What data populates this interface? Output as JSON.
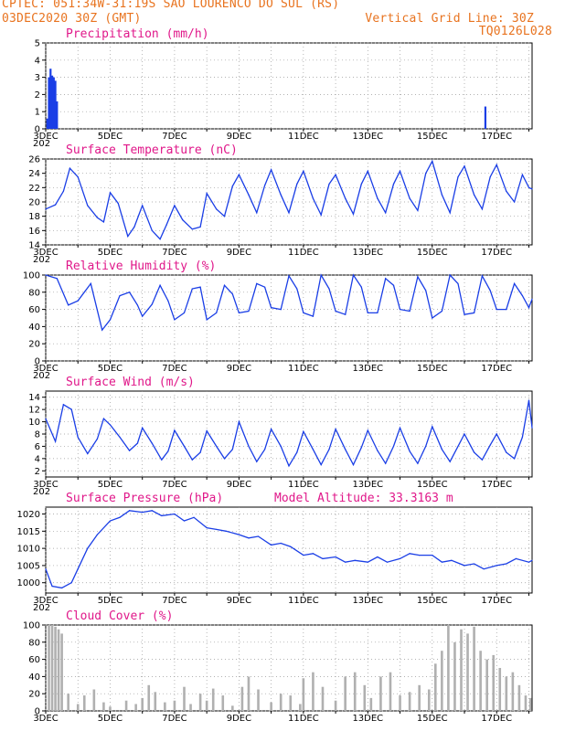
{
  "header": {
    "line1": "CPTEC:  051:34W-31:19S  SAO LOURENCO DO SUL (RS)",
    "line2_left": "03DEC2020 30Z (GMT)",
    "line2_right": "Vertical Grid Line: 30Z",
    "line3_right": "TQ0126L028"
  },
  "colors": {
    "line": "#1a3ee6",
    "title": "#e0188a",
    "header": "#e8731f",
    "cloud": "#b0b0b0",
    "grid": "#999999"
  },
  "x_labels": [
    "3DEC",
    "5DEC",
    "7DEC",
    "9DEC",
    "11DEC",
    "13DEC",
    "15DEC",
    "17DEC"
  ],
  "x_sublabel": "202",
  "chart_data": [
    {
      "type": "bar",
      "title": "Precipitation (mm/h)",
      "ylim": [
        0,
        5
      ],
      "yticks": [
        0,
        1,
        2,
        3,
        4,
        5
      ],
      "x_day_range": [
        3,
        18.1
      ],
      "x": [
        3.05,
        3.1,
        3.15,
        3.2,
        3.25,
        3.3,
        3.35,
        16.65
      ],
      "values": [
        0.6,
        3.0,
        3.5,
        3.1,
        3.0,
        2.8,
        1.6,
        1.3
      ]
    },
    {
      "type": "line",
      "title": "Surface Temperature (nC)",
      "ylim": [
        14,
        26
      ],
      "yticks": [
        14,
        16,
        18,
        20,
        22,
        24,
        26
      ],
      "x_day_range": [
        3,
        18.1
      ],
      "x": [
        3.0,
        3.3,
        3.55,
        3.75,
        4.0,
        4.3,
        4.6,
        4.8,
        5.0,
        5.25,
        5.55,
        5.75,
        6.0,
        6.3,
        6.55,
        6.75,
        7.0,
        7.25,
        7.55,
        7.8,
        8.0,
        8.3,
        8.55,
        8.8,
        9.0,
        9.3,
        9.55,
        9.8,
        10.0,
        10.3,
        10.55,
        10.8,
        11.0,
        11.3,
        11.55,
        11.8,
        12.0,
        12.3,
        12.55,
        12.8,
        13.0,
        13.3,
        13.55,
        13.8,
        14.0,
        14.3,
        14.55,
        14.8,
        15.0,
        15.3,
        15.55,
        15.8,
        16.0,
        16.3,
        16.55,
        16.8,
        17.0,
        17.3,
        17.55,
        17.8,
        18.0,
        18.1
      ],
      "values": [
        19,
        19.6,
        21.5,
        24.7,
        23.5,
        19.5,
        17.8,
        17.2,
        21.3,
        19.8,
        15.2,
        16.5,
        19.5,
        16.0,
        14.8,
        16.8,
        19.5,
        17.5,
        16.2,
        16.5,
        21.2,
        19.0,
        18.0,
        22.2,
        23.8,
        21.0,
        18.5,
        22.3,
        24.5,
        21.0,
        18.5,
        22.5,
        24.3,
        20.5,
        18.2,
        22.5,
        23.8,
        20.5,
        18.3,
        22.5,
        24.3,
        20.5,
        18.5,
        22.5,
        24.3,
        20.5,
        18.8,
        24.0,
        25.7,
        21.0,
        18.5,
        23.5,
        25.0,
        21.0,
        19.0,
        23.5,
        25.2,
        21.5,
        20.0,
        23.8,
        22.0,
        21.8
      ]
    },
    {
      "type": "line",
      "title": "Relative Humidity (%)",
      "ylim": [
        0,
        100
      ],
      "yticks": [
        0,
        20,
        40,
        60,
        80,
        100
      ],
      "x_day_range": [
        3,
        18.1
      ],
      "x": [
        3.0,
        3.35,
        3.7,
        4.0,
        4.4,
        4.75,
        5.0,
        5.3,
        5.6,
        5.85,
        6.0,
        6.3,
        6.55,
        6.8,
        7.0,
        7.3,
        7.55,
        7.8,
        8.0,
        8.3,
        8.55,
        8.8,
        9.0,
        9.3,
        9.55,
        9.8,
        10.0,
        10.3,
        10.55,
        10.8,
        11.0,
        11.3,
        11.55,
        11.8,
        12.0,
        12.3,
        12.55,
        12.8,
        13.0,
        13.3,
        13.55,
        13.8,
        14.0,
        14.3,
        14.55,
        14.8,
        15.0,
        15.3,
        15.55,
        15.8,
        16.0,
        16.3,
        16.55,
        16.8,
        17.0,
        17.3,
        17.55,
        17.8,
        18.0,
        18.1
      ],
      "values": [
        100,
        96,
        65,
        70,
        90,
        36,
        48,
        76,
        80,
        65,
        52,
        66,
        88,
        70,
        48,
        56,
        84,
        86,
        48,
        56,
        88,
        78,
        56,
        58,
        90,
        86,
        62,
        60,
        99,
        84,
        56,
        52,
        100,
        84,
        58,
        54,
        100,
        86,
        56,
        56,
        96,
        88,
        60,
        58,
        98,
        82,
        50,
        58,
        100,
        90,
        54,
        56,
        99,
        82,
        60,
        60,
        90,
        76,
        62,
        72
      ]
    },
    {
      "type": "line",
      "title": "Surface Wind (m/s)",
      "ylim": [
        1,
        15
      ],
      "yticks": [
        2,
        4,
        6,
        8,
        10,
        12,
        14
      ],
      "x_day_range": [
        3,
        18.1
      ],
      "x": [
        3.0,
        3.3,
        3.55,
        3.8,
        4.0,
        4.3,
        4.6,
        4.8,
        5.0,
        5.3,
        5.6,
        5.85,
        6.0,
        6.3,
        6.6,
        6.8,
        7.0,
        7.3,
        7.55,
        7.8,
        8.0,
        8.3,
        8.55,
        8.8,
        9.0,
        9.3,
        9.55,
        9.8,
        10.0,
        10.3,
        10.55,
        10.8,
        11.0,
        11.3,
        11.55,
        11.8,
        12.0,
        12.3,
        12.55,
        12.8,
        13.0,
        13.3,
        13.55,
        13.8,
        14.0,
        14.3,
        14.55,
        14.8,
        15.0,
        15.3,
        15.55,
        15.8,
        16.0,
        16.3,
        16.55,
        16.8,
        17.0,
        17.3,
        17.55,
        17.8,
        18.0,
        18.1
      ],
      "values": [
        10.5,
        6.8,
        12.8,
        12.0,
        7.5,
        4.8,
        7.2,
        10.5,
        9.5,
        7.5,
        5.3,
        6.5,
        9.0,
        6.5,
        3.8,
        5.2,
        8.6,
        6.0,
        3.8,
        5.0,
        8.5,
        6.0,
        4.0,
        5.5,
        10.0,
        6.0,
        3.5,
        5.5,
        8.8,
        6.0,
        2.8,
        5.0,
        8.4,
        5.5,
        3.0,
        5.5,
        8.8,
        5.5,
        3.0,
        5.8,
        8.6,
        5.3,
        3.2,
        6.0,
        9.0,
        5.2,
        3.2,
        6.0,
        9.2,
        5.5,
        3.5,
        6.0,
        8.0,
        5.0,
        3.8,
        6.2,
        8.0,
        5.0,
        4.0,
        7.5,
        13.5,
        9.0
      ]
    },
    {
      "type": "line",
      "title": "Surface Pressure (hPa)",
      "annotation": "Model Altitude: 33.3163 m",
      "ylim": [
        997,
        1022
      ],
      "yticks": [
        1000,
        1005,
        1010,
        1015,
        1020
      ],
      "x_day_range": [
        3,
        18.1
      ],
      "x": [
        3.0,
        3.2,
        3.5,
        3.8,
        4.0,
        4.3,
        4.6,
        5.0,
        5.3,
        5.6,
        6.0,
        6.3,
        6.6,
        7.0,
        7.3,
        7.6,
        8.0,
        8.3,
        8.6,
        9.0,
        9.3,
        9.6,
        10.0,
        10.3,
        10.6,
        11.0,
        11.3,
        11.6,
        12.0,
        12.3,
        12.6,
        13.0,
        13.3,
        13.6,
        14.0,
        14.3,
        14.6,
        15.0,
        15.3,
        15.6,
        16.0,
        16.3,
        16.6,
        17.0,
        17.3,
        17.6,
        18.0,
        18.1
      ],
      "values": [
        1004,
        999,
        998.5,
        1000,
        1004,
        1010,
        1014,
        1018,
        1019,
        1021,
        1020.5,
        1021,
        1019.5,
        1020,
        1018,
        1019,
        1016,
        1015.5,
        1015,
        1014,
        1013,
        1013.5,
        1011,
        1011.5,
        1010.5,
        1008,
        1008.5,
        1007,
        1007.5,
        1006,
        1006.5,
        1006,
        1007.5,
        1006,
        1007,
        1008.5,
        1008,
        1008,
        1006,
        1006.5,
        1005,
        1005.5,
        1004,
        1005,
        1005.5,
        1007,
        1006,
        1006.5
      ]
    },
    {
      "type": "bar",
      "title": "Cloud Cover (%)",
      "ylim": [
        0,
        100
      ],
      "yticks": [
        0,
        20,
        40,
        60,
        80,
        100
      ],
      "x_day_range": [
        3,
        18.1
      ],
      "x": [
        3.1,
        3.2,
        3.3,
        3.4,
        3.5,
        3.7,
        4.0,
        4.2,
        4.5,
        4.8,
        5.0,
        5.5,
        5.8,
        6.0,
        6.2,
        6.4,
        6.7,
        7.0,
        7.3,
        7.5,
        7.8,
        8.0,
        8.2,
        8.5,
        8.8,
        9.1,
        9.3,
        9.6,
        10.0,
        10.3,
        10.6,
        10.9,
        11.0,
        11.3,
        11.6,
        12.0,
        12.3,
        12.6,
        12.9,
        13.1,
        13.4,
        13.7,
        14.0,
        14.3,
        14.6,
        14.9,
        15.1,
        15.3,
        15.5,
        15.7,
        15.9,
        16.1,
        16.3,
        16.5,
        16.7,
        16.9,
        17.1,
        17.3,
        17.5,
        17.7,
        17.9,
        18.05
      ],
      "values": [
        100,
        100,
        98,
        95,
        90,
        20,
        8,
        18,
        25,
        10,
        5,
        12,
        8,
        15,
        30,
        22,
        10,
        12,
        28,
        8,
        20,
        12,
        26,
        18,
        6,
        28,
        40,
        25,
        10,
        20,
        18,
        8,
        38,
        45,
        28,
        12,
        40,
        45,
        30,
        15,
        40,
        45,
        18,
        22,
        30,
        25,
        55,
        70,
        100,
        80,
        95,
        90,
        98,
        70,
        60,
        65,
        50,
        40,
        45,
        30,
        18,
        15
      ]
    }
  ]
}
